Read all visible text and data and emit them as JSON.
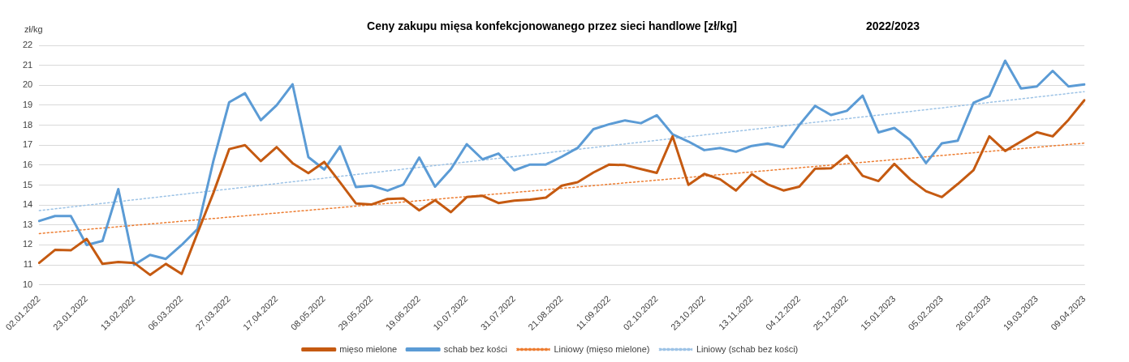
{
  "chart_data": {
    "type": "line",
    "title": "Ceny zakupu mięsa konfekcjonowanego przez sieci handlowe [zł/kg]",
    "subtitle": "2022/2023",
    "ylabel": "zł/kg",
    "categories": [
      "02.01.2022",
      null,
      null,
      "23.01.2022",
      null,
      null,
      "13.02.2022",
      null,
      null,
      "06.03.2022",
      null,
      null,
      "27.03.2022",
      null,
      null,
      "17.04.2022",
      null,
      null,
      "08.05.2022",
      null,
      null,
      "29.05.2022",
      null,
      null,
      "19.06.2022",
      null,
      null,
      "10.07.2022",
      null,
      null,
      "31.07.2022",
      null,
      null,
      "21.08.2022",
      null,
      null,
      "11.09.2022",
      null,
      null,
      "02.10.2022",
      null,
      null,
      "23.10.2022",
      null,
      null,
      "13.11.2022",
      null,
      null,
      "04.12.2022",
      null,
      null,
      "25.12.2022",
      null,
      null,
      "15.01.2023",
      null,
      null,
      "05.02.2023",
      null,
      null,
      "26.02.2023",
      null,
      null,
      "19.03.2023",
      null,
      null,
      "09.04.2023"
    ],
    "series": [
      {
        "name": "mięso mielone",
        "color": "#c55a11",
        "values": [
          11.1,
          11.75,
          11.73,
          12.3,
          11.05,
          11.15,
          11.1,
          10.5,
          11.05,
          10.55,
          12.6,
          14.6,
          16.8,
          17.0,
          16.2,
          16.9,
          16.1,
          15.6,
          16.16,
          15.14,
          14.08,
          14.03,
          14.3,
          14.33,
          13.73,
          14.24,
          13.64,
          14.4,
          14.46,
          14.1,
          14.22,
          14.27,
          14.37,
          14.97,
          15.14,
          15.63,
          16.03,
          16.0,
          15.8,
          15.61,
          17.44,
          15.01,
          15.56,
          15.29,
          14.73,
          15.55,
          15.04,
          14.73,
          14.92,
          15.82,
          15.84,
          16.48,
          15.46,
          15.2,
          16.06,
          15.29,
          14.69,
          14.4,
          15.05,
          15.75,
          17.44,
          16.71,
          17.18,
          17.65,
          17.44,
          18.27,
          19.25
        ]
      },
      {
        "name": "schab bez kości",
        "color": "#5b9bd5",
        "values": [
          13.2,
          13.45,
          13.45,
          12.0,
          12.2,
          14.8,
          11.0,
          11.5,
          11.3,
          12.0,
          12.8,
          16.2,
          19.15,
          19.6,
          18.25,
          19.0,
          20.05,
          16.4,
          15.78,
          16.93,
          14.9,
          14.97,
          14.72,
          15.03,
          16.38,
          14.92,
          15.8,
          17.05,
          16.29,
          16.58,
          15.74,
          16.03,
          16.03,
          16.42,
          16.86,
          17.8,
          18.05,
          18.24,
          18.1,
          18.5,
          17.54,
          17.18,
          16.75,
          16.86,
          16.67,
          16.96,
          17.08,
          16.9,
          18.01,
          18.97,
          18.51,
          18.72,
          19.48,
          17.64,
          17.86,
          17.25,
          16.1,
          17.09,
          17.22,
          19.12,
          19.46,
          21.23,
          19.84,
          19.94,
          20.72,
          19.94,
          20.04
        ]
      },
      {
        "name": "Liniowy (mięso mielone)",
        "color": "#ed7d31",
        "line_style": "dotted",
        "x": [
          "02.01.2022",
          "09.04.2023"
        ],
        "values": [
          12.57,
          17.1
        ]
      },
      {
        "name": "Liniowy (schab bez kości)",
        "color": "#9dc3e6",
        "line_style": "dotted",
        "x": [
          "02.01.2022",
          "09.04.2023"
        ],
        "values": [
          13.72,
          19.68
        ]
      }
    ],
    "ylim": [
      10,
      22
    ],
    "yticks": [
      10,
      11,
      12,
      13,
      14,
      15,
      16,
      17,
      18,
      19,
      20,
      21,
      22
    ],
    "grid": "y",
    "legend": "bottom",
    "marker": "none",
    "line_style": "solid"
  }
}
